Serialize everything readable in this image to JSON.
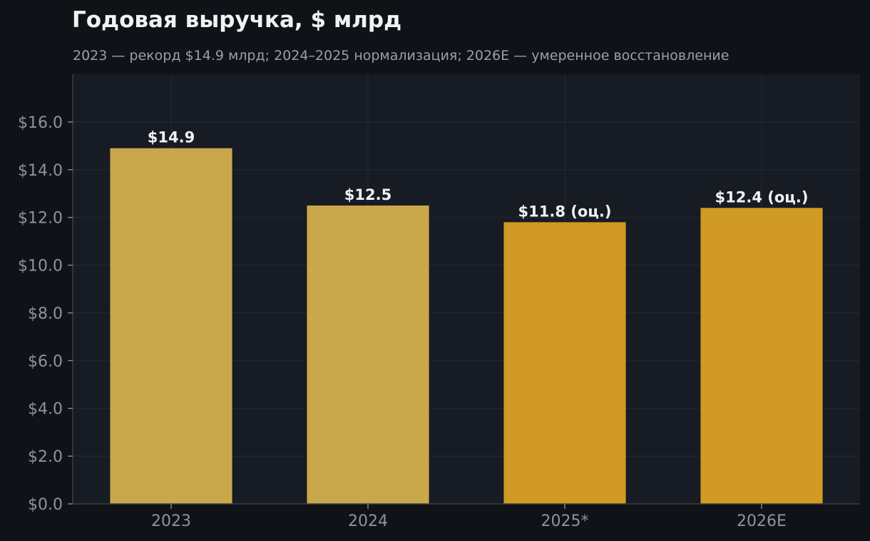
{
  "colors": {
    "background": "#0f1318",
    "plot_background": "#171b23",
    "grid": "#252a33",
    "axis": "#3a3f48",
    "actual_bar": "#c9a84c",
    "estimate_bar": "#d19a24",
    "title_text": "#f0f2f5",
    "subtitle_text": "#9aa0a8",
    "tick_text": "#8e949c",
    "label_text": "#eef1f5"
  },
  "chart_data": {
    "type": "bar",
    "title": "Годовая выручка, $ млрд",
    "subtitle": "2023 — рекорд $14.9 млрд; 2024–2025 нормализация; 2026E — умеренное восстановление",
    "xlabel": "",
    "ylabel": "",
    "categories": [
      "2023",
      "2024",
      "2025*",
      "2026E"
    ],
    "values": [
      14.9,
      12.5,
      11.8,
      12.4
    ],
    "data_labels": [
      "$14.9",
      "$12.5",
      "$11.8 (оц.)",
      "$12.4 (оц.)"
    ],
    "estimate": [
      false,
      false,
      true,
      true
    ],
    "ylim": [
      0,
      18
    ],
    "yticks": [
      0,
      2,
      4,
      6,
      8,
      10,
      12,
      14,
      16
    ],
    "ytick_labels": [
      "$0.0",
      "$2.0",
      "$4.0",
      "$6.0",
      "$8.0",
      "$10.0",
      "$12.0",
      "$14.0",
      "$16.0"
    ],
    "grid": true,
    "legend": "none"
  }
}
